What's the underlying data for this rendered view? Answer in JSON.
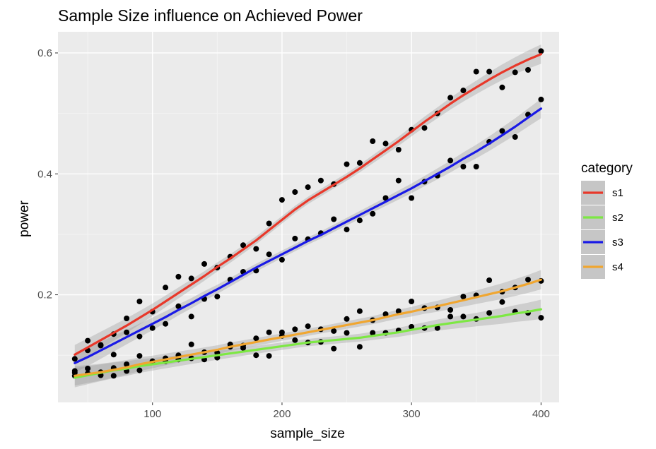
{
  "chart_data": {
    "type": "scatter",
    "title": "Sample Size influence on Achieved Power",
    "xlabel": "sample_size",
    "ylabel": "power",
    "xlim": [
      27,
      414
    ],
    "ylim": [
      0.022,
      0.635
    ],
    "xticks": [
      100,
      200,
      300,
      400
    ],
    "yticks": [
      0.2,
      0.4,
      0.6
    ],
    "xtick_labels": [
      "100",
      "200",
      "300",
      "400"
    ],
    "ytick_labels": [
      "0.2",
      "0.4",
      "0.6"
    ],
    "grid": true,
    "background": "#ebebeb",
    "legend": {
      "title": "category",
      "placement": "right"
    },
    "x": [
      40,
      50,
      60,
      70,
      80,
      90,
      100,
      110,
      120,
      130,
      140,
      150,
      160,
      170,
      180,
      190,
      200,
      210,
      220,
      230,
      240,
      250,
      260,
      270,
      280,
      290,
      300,
      310,
      320,
      330,
      340,
      350,
      360,
      370,
      380,
      390,
      400
    ],
    "series": [
      {
        "name": "s1",
        "color": "#e8382a",
        "points": [
          0.094,
          0.124,
          0.117,
          0.135,
          0.161,
          0.189,
          0.172,
          0.212,
          0.23,
          0.227,
          0.251,
          0.245,
          0.263,
          0.282,
          0.276,
          0.318,
          0.357,
          0.37,
          0.378,
          0.389,
          0.383,
          0.416,
          0.418,
          0.454,
          0.45,
          0.44,
          0.473,
          0.476,
          0.5,
          0.526,
          0.538,
          0.569,
          0.569,
          0.543,
          0.568,
          0.572,
          0.603
        ],
        "fit": [
          0.101,
          0.113,
          0.125,
          0.137,
          0.149,
          0.162,
          0.175,
          0.189,
          0.203,
          0.217,
          0.231,
          0.246,
          0.26,
          0.275,
          0.29,
          0.307,
          0.324,
          0.341,
          0.356,
          0.369,
          0.382,
          0.395,
          0.409,
          0.424,
          0.439,
          0.454,
          0.47,
          0.486,
          0.501,
          0.516,
          0.53,
          0.543,
          0.556,
          0.568,
          0.579,
          0.589,
          0.598
        ]
      },
      {
        "name": "s2",
        "color": "#7de843",
        "points": [
          0.066,
          0.078,
          0.067,
          0.066,
          0.074,
          0.075,
          0.09,
          0.09,
          0.093,
          0.095,
          0.093,
          0.096,
          0.118,
          0.112,
          0.1,
          0.099,
          0.132,
          0.125,
          0.121,
          0.122,
          0.111,
          0.137,
          0.114,
          0.137,
          0.137,
          0.141,
          0.147,
          0.145,
          0.145,
          0.164,
          0.164,
          0.16,
          0.17,
          0.188,
          0.172,
          0.17,
          0.162
        ],
        "fit": [
          0.063,
          0.067,
          0.071,
          0.075,
          0.078,
          0.082,
          0.085,
          0.088,
          0.091,
          0.094,
          0.097,
          0.1,
          0.103,
          0.106,
          0.109,
          0.112,
          0.115,
          0.118,
          0.121,
          0.123,
          0.125,
          0.127,
          0.129,
          0.132,
          0.135,
          0.138,
          0.142,
          0.146,
          0.15,
          0.153,
          0.156,
          0.159,
          0.162,
          0.165,
          0.169,
          0.172,
          0.176
        ]
      },
      {
        "name": "s3",
        "color": "#1a1ae6",
        "points": [
          0.071,
          0.108,
          0.116,
          0.101,
          0.138,
          0.131,
          0.145,
          0.152,
          0.181,
          0.164,
          0.193,
          0.197,
          0.225,
          0.238,
          0.24,
          0.267,
          0.258,
          0.293,
          0.292,
          0.302,
          0.325,
          0.308,
          0.323,
          0.334,
          0.36,
          0.389,
          0.36,
          0.387,
          0.397,
          0.422,
          0.412,
          0.412,
          0.453,
          0.471,
          0.461,
          0.498,
          0.523
        ],
        "fit": [
          0.087,
          0.097,
          0.108,
          0.119,
          0.13,
          0.141,
          0.152,
          0.163,
          0.175,
          0.186,
          0.198,
          0.209,
          0.221,
          0.233,
          0.245,
          0.256,
          0.267,
          0.278,
          0.289,
          0.299,
          0.31,
          0.321,
          0.332,
          0.343,
          0.354,
          0.365,
          0.376,
          0.388,
          0.4,
          0.412,
          0.425,
          0.437,
          0.45,
          0.464,
          0.478,
          0.493,
          0.508
        ]
      },
      {
        "name": "s4",
        "color": "#f0a630",
        "points": [
          0.074,
          0.07,
          0.072,
          0.079,
          0.085,
          0.099,
          0.09,
          0.095,
          0.1,
          0.118,
          0.105,
          0.104,
          0.114,
          0.116,
          0.128,
          0.138,
          0.138,
          0.143,
          0.148,
          0.143,
          0.14,
          0.16,
          0.173,
          0.158,
          0.168,
          0.173,
          0.189,
          0.178,
          0.179,
          0.175,
          0.197,
          0.199,
          0.224,
          0.205,
          0.212,
          0.225,
          0.223
        ],
        "fit": [
          0.066,
          0.069,
          0.072,
          0.076,
          0.08,
          0.085,
          0.089,
          0.093,
          0.097,
          0.101,
          0.105,
          0.109,
          0.114,
          0.118,
          0.122,
          0.126,
          0.13,
          0.134,
          0.138,
          0.142,
          0.146,
          0.15,
          0.154,
          0.158,
          0.163,
          0.168,
          0.172,
          0.177,
          0.181,
          0.186,
          0.191,
          0.196,
          0.201,
          0.206,
          0.212,
          0.218,
          0.225
        ]
      }
    ]
  }
}
